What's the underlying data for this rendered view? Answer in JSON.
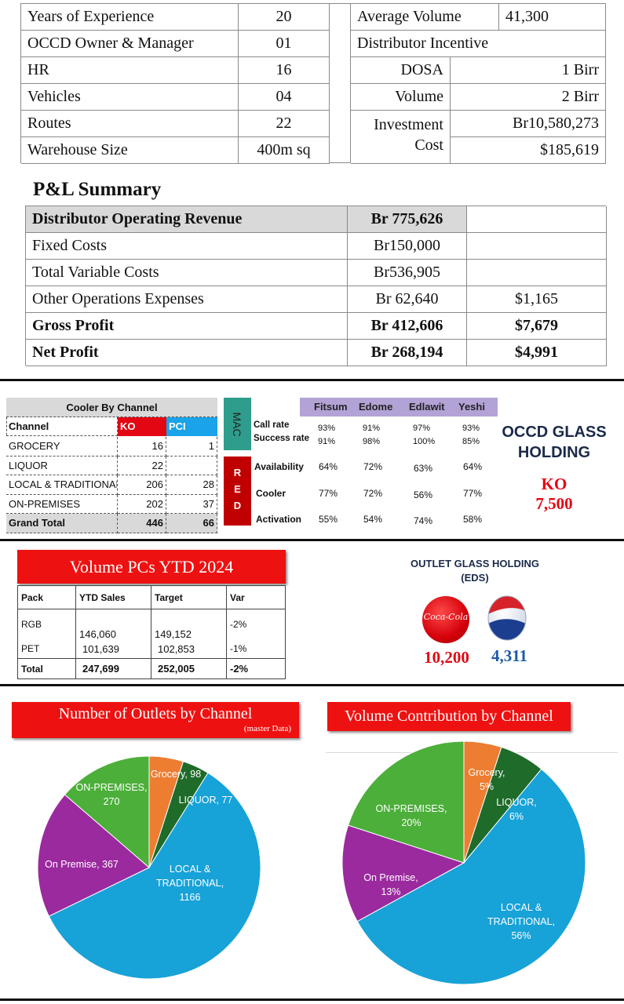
{
  "stats_left": [
    {
      "label": "Years of Experience",
      "value": "20"
    },
    {
      "label": "OCCD Owner & Manager",
      "value": "01"
    },
    {
      "label": "HR",
      "value": "16"
    },
    {
      "label": "Vehicles",
      "value": "04"
    },
    {
      "label": "Routes",
      "value": "22"
    },
    {
      "label": "Warehouse Size",
      "value": "400m sq"
    }
  ],
  "stats_right": {
    "avg_volume_label": "Average Volume",
    "avg_volume_value": "41,300",
    "incentive_label": "Distributor Incentive",
    "dosa_label": "DOSA",
    "dosa_value": "1 Birr",
    "volume_label": "Volume",
    "volume_value": "2 Birr",
    "investment_label_1": "Investment",
    "investment_label_2": "Cost",
    "investment_birr": "Br10,580,273",
    "investment_usd": "$185,619"
  },
  "pl": {
    "title": "P&L Summary",
    "rows": [
      {
        "label": "Distributor Operating Revenue",
        "birr": "Br 775,626",
        "usd": ""
      },
      {
        "label": "Fixed Costs",
        "birr": "Br150,000",
        "usd": ""
      },
      {
        "label": "Total Variable Costs",
        "birr": "Br536,905",
        "usd": ""
      },
      {
        "label": "Other Operations Expenses",
        "birr": "Br 62,640",
        "usd": "$1,165"
      },
      {
        "label": "Gross Profit",
        "birr": "Br 412,606",
        "usd": "$7,679"
      },
      {
        "label": "Net Profit",
        "birr": "Br 268,194",
        "usd": "$4,991"
      }
    ]
  },
  "cooler": {
    "title": "Cooler By Channel",
    "headers": [
      "Channel",
      "KO",
      "PCI"
    ],
    "rows": [
      [
        "GROCERY",
        "16",
        "1"
      ],
      [
        "LIQUOR",
        "22",
        ""
      ],
      [
        "LOCAL & TRADITIONAL",
        "206",
        "28"
      ],
      [
        "ON-PREMISES",
        "202",
        "37"
      ]
    ],
    "total": [
      "Grand Total",
      "446",
      "66"
    ]
  },
  "mac_red": {
    "mac_label": "MAC",
    "red_label": "RED",
    "names": [
      "Fitsum",
      "Edome",
      "Edlawit",
      "Yeshi"
    ],
    "mac_rows": [
      {
        "label": "Call rate",
        "values": [
          "93%",
          "91%",
          "97%",
          "93%"
        ]
      },
      {
        "label": "Success rate",
        "values": [
          "91%",
          "98%",
          "100%",
          "85%"
        ]
      }
    ],
    "red_rows": [
      {
        "label": "Availability",
        "values": [
          "64%",
          "72%",
          "63%",
          "64%"
        ]
      },
      {
        "label": "Cooler",
        "values": [
          "77%",
          "72%",
          "56%",
          "77%"
        ]
      },
      {
        "label": "Activation",
        "values": [
          "55%",
          "54%",
          "74%",
          "58%"
        ]
      }
    ]
  },
  "glass": {
    "title_1": "OCCD GLASS",
    "title_2": "HOLDING",
    "ko_label": "KO",
    "ko_value": "7,500"
  },
  "volume": {
    "title": "Volume PCs YTD 2024",
    "headers": [
      "Pack",
      "YTD Sales",
      "Target",
      "Var"
    ],
    "rows": [
      [
        "RGB",
        "146,060",
        "149,152",
        "-2%"
      ],
      [
        "PET",
        "101,639",
        "102,853",
        "-1%"
      ],
      [
        "Total",
        "247,699",
        "252,005",
        "-2%"
      ]
    ]
  },
  "outlet_glass": {
    "title_1": "OUTLET GLASS HOLDING",
    "title_2": "(EDS)",
    "coke_value": "10,200",
    "pepsi_value": "4,311",
    "coke_logo_text": "Coca-Cola"
  },
  "chart_outlets": {
    "title": "Number of Outlets by Channel",
    "subtitle": "(master Data)"
  },
  "chart_volume": {
    "title": "Volume Contribution by Channel"
  },
  "chart_data": [
    {
      "type": "pie",
      "title": "Number of Outlets by Channel",
      "categories": [
        "Grocery",
        "LIQUOR",
        "LOCAL & TRADITIONAL",
        "On Premise",
        "ON-PREMISES"
      ],
      "values": [
        98,
        77,
        1166,
        367,
        270
      ],
      "labels": [
        "Grocery, 98",
        "LIQUOR, 77",
        "LOCAL & TRADITIONAL, 1166",
        "On Premise, 367",
        "ON-PREMISES, 270"
      ],
      "colors": [
        "#ed7d31",
        "#1f6b2a",
        "#17a2d8",
        "#9b2a9e",
        "#4caf3a"
      ]
    },
    {
      "type": "pie",
      "title": "Volume Contribution by Channel",
      "categories": [
        "Grocery",
        "LIQUOR",
        "LOCAL & TRADITIONAL",
        "On Premise",
        "ON-PREMISES"
      ],
      "values": [
        5,
        6,
        56,
        13,
        20
      ],
      "labels": [
        "Grocery, 5%",
        "LIQUOR, 6%",
        "LOCAL & TRADITIONAL, 56%",
        "On Premise, 13%",
        "ON-PREMISES, 20%"
      ],
      "colors": [
        "#ed7d31",
        "#1f6b2a",
        "#17a2d8",
        "#9b2a9e",
        "#4caf3a"
      ]
    }
  ],
  "colors": {
    "red": "#ee1111",
    "ko_red": "#e30613",
    "pci_blue": "#1aa3e8",
    "mac_teal": "#2f9d8c",
    "red_block": "#c00000",
    "name_header": "#b3a2d6",
    "usd_blue": "#1f5aa6"
  }
}
